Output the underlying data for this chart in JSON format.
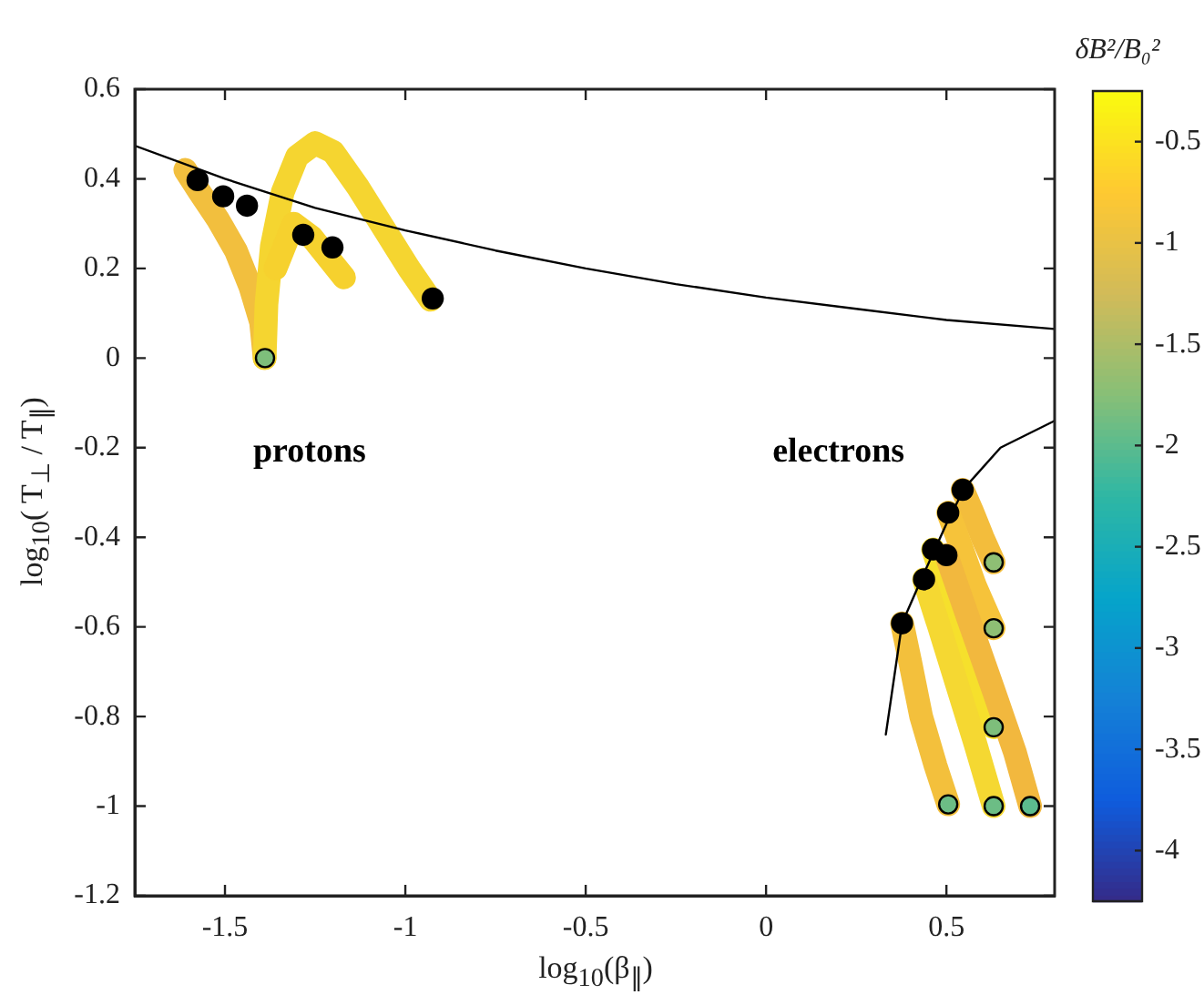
{
  "chart_data": {
    "type": "scatter",
    "xlabel": "log$_{10}$(β$_{∥}$)",
    "ylabel": "log$_{10}$( T$_{⊥}$ / T$_{∥}$)",
    "clabel": "δB²/B₀²",
    "xlim": [
      -1.75,
      0.8
    ],
    "xticks": [
      -1.5,
      -1,
      -0.5,
      0,
      0.5
    ],
    "ylim": [
      -1.2,
      0.6
    ],
    "yticks": [
      -1.2,
      -1,
      -0.8,
      -0.6,
      -0.4,
      -0.2,
      0,
      0.2,
      0.4,
      0.6
    ],
    "clim": [
      -4.25,
      -0.25
    ],
    "cticks": [
      -4,
      -3.5,
      -3,
      -2.5,
      -2,
      -1.5,
      -1,
      -0.5
    ],
    "legend": false,
    "marker": "circle",
    "annotations": [
      "protons",
      "electrons"
    ],
    "series": [
      {
        "type": "line",
        "marker": "none",
        "color": "#f2bf3e",
        "x": [
          -1.39,
          -1.4,
          -1.43,
          -1.47,
          -1.52,
          -1.57,
          -1.61
        ],
        "values": [
          0,
          0.08,
          0.16,
          0.24,
          0.31,
          0.37,
          0.42
        ]
      },
      {
        "type": "line",
        "marker": "none",
        "color": "#f5d530",
        "x": [
          -1.39,
          -1.385,
          -1.37,
          -1.34,
          -1.3,
          -1.25,
          -1.2,
          -1.13,
          -1.06,
          -0.99,
          -0.93
        ],
        "values": [
          0,
          0.12,
          0.25,
          0.37,
          0.45,
          0.48,
          0.46,
          0.38,
          0.29,
          0.2,
          0.13
        ]
      },
      {
        "type": "line",
        "marker": "none",
        "color": "#f6d12e",
        "x": [
          -1.36,
          -1.31,
          -1.26,
          -1.21,
          -1.17
        ],
        "values": [
          0.2,
          0.3,
          0.27,
          0.22,
          0.18
        ]
      },
      {
        "type": "line",
        "marker": "none",
        "color": "#f3bd3c",
        "x": [
          0.545,
          0.57,
          0.6,
          0.631
        ],
        "values": [
          -0.294,
          -0.34,
          -0.4,
          -0.456
        ]
      },
      {
        "type": "line",
        "marker": "none",
        "color": "#f6c33a",
        "x": [
          0.505,
          0.54,
          0.58,
          0.631
        ],
        "values": [
          -0.345,
          -0.42,
          -0.51,
          -0.603
        ]
      },
      {
        "type": "line",
        "marker": "none",
        "color": "#f6e02c",
        "x": [
          0.463,
          0.5,
          0.55,
          0.6,
          0.631
        ],
        "values": [
          -0.427,
          -0.52,
          -0.64,
          -0.76,
          -0.824
        ]
      },
      {
        "type": "line",
        "marker": "none",
        "color": "#f2b83e",
        "x": [
          0.5,
          0.56,
          0.63,
          0.69,
          0.732
        ],
        "values": [
          -0.44,
          -0.58,
          -0.74,
          -0.88,
          -1
        ]
      },
      {
        "type": "line",
        "marker": "none",
        "color": "#f5d832",
        "x": [
          0.438,
          0.48,
          0.53,
          0.58,
          0.631
        ],
        "values": [
          -0.494,
          -0.6,
          -0.73,
          -0.86,
          -1
        ]
      },
      {
        "type": "line",
        "marker": "none",
        "color": "#f3c03c",
        "x": [
          0.377,
          0.4,
          0.43,
          0.47,
          0.505
        ],
        "values": [
          -0.592,
          -0.68,
          -0.8,
          -0.91,
          -0.996
        ]
      },
      {
        "type": "line",
        "marker": "none",
        "color": "#000000",
        "x": [
          -1.75,
          -1.5,
          -1.25,
          -1,
          -0.75,
          -0.5,
          -0.25,
          0,
          0.25,
          0.5,
          0.8
        ],
        "values": [
          0.474,
          0.4,
          0.335,
          0.285,
          0.24,
          0.2,
          0.165,
          0.135,
          0.11,
          0.085,
          0.065
        ]
      },
      {
        "type": "line",
        "marker": "none",
        "color": "#000000",
        "x": [
          0.332,
          0.377,
          0.438,
          0.5,
          0.55,
          0.65,
          0.8
        ],
        "values": [
          -0.84,
          -0.592,
          -0.48,
          -0.37,
          -0.29,
          -0.2,
          -0.14
        ]
      },
      {
        "color": "#000000",
        "x": [
          -1.389,
          0.631,
          0.631,
          0.631,
          0.505,
          0.631,
          0.732
        ],
        "values": [
          0,
          -0.456,
          -0.603,
          -0.824,
          -0.996,
          -1,
          -1
        ],
        "cvalues": [
          -1.8,
          -1.7,
          -1.7,
          -1.8,
          -1.9,
          -1.9,
          -2
        ]
      },
      {
        "color": "#000000",
        "x": [
          -1.576,
          -1.505,
          -1.439,
          -1.283,
          -1.202,
          -0.924,
          0.545,
          0.505,
          0.463,
          0.5,
          0.438,
          0.377
        ],
        "values": [
          0.397,
          0.361,
          0.34,
          0.275,
          0.247,
          0.133,
          -0.294,
          -0.345,
          -0.427,
          -0.44,
          -0.494,
          -0.592
        ]
      }
    ]
  }
}
